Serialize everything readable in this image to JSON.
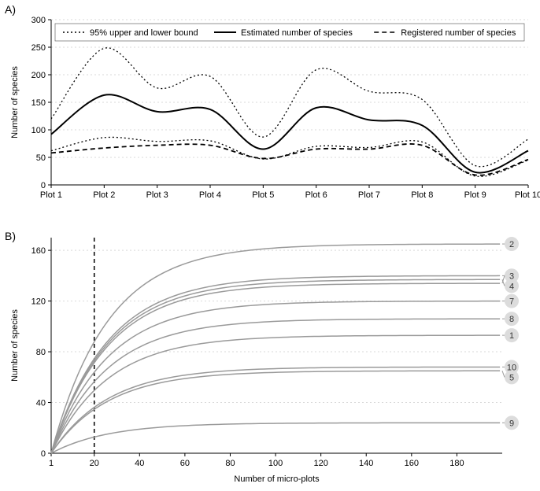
{
  "panelA": {
    "label": "A)",
    "ylabel": "Number of species",
    "ylim": [
      0,
      300
    ],
    "ytick_step": 50,
    "xticks": [
      "Plot 1",
      "Plot 2",
      "Plot 3",
      "Plot 4",
      "Plot 5",
      "Plot 6",
      "Plot 7",
      "Plot 8",
      "Plot 9",
      "Plot 10"
    ],
    "legend": [
      {
        "label": "95% upper and lower bound",
        "style": "dotted"
      },
      {
        "label": "Estimated number of species",
        "style": "solid"
      },
      {
        "label": "Registered number of species",
        "style": "dashed"
      }
    ],
    "series": {
      "upper": {
        "values": [
          120,
          248,
          176,
          197,
          87,
          209,
          170,
          155,
          35,
          83
        ],
        "color": "#000000",
        "dash": "dotted",
        "width": 1.3
      },
      "estimated": {
        "values": [
          92,
          163,
          133,
          137,
          65,
          140,
          118,
          108,
          23,
          62
        ],
        "color": "#000000",
        "dash": "solid",
        "width": 2
      },
      "lower": {
        "values": [
          62,
          86,
          79,
          80,
          47,
          70,
          68,
          78,
          16,
          45
        ],
        "color": "#000000",
        "dash": "dotted",
        "width": 1.3
      },
      "registered": {
        "values": [
          58,
          67,
          72,
          72,
          48,
          65,
          65,
          72,
          18,
          46
        ],
        "color": "#000000",
        "dash": "dashed",
        "width": 1.8
      }
    },
    "grid_color": "#d9d9d9",
    "axis_color": "#000000",
    "font_size": 11,
    "background": "#ffffff"
  },
  "panelB": {
    "label": "B)",
    "ylabel": "Number of species",
    "xlabel": "Number of micro-plots",
    "ylim": [
      0,
      170
    ],
    "ytick_step": 40,
    "xlim": [
      1,
      200
    ],
    "xtick_step": 20,
    "vline_x": 20,
    "curves": [
      {
        "id": "1",
        "asym": 93,
        "color": "#9a9a9a"
      },
      {
        "id": "2",
        "asym": 165,
        "color": "#9a9a9a"
      },
      {
        "id": "3",
        "asym": 134,
        "color": "#9a9a9a"
      },
      {
        "id": "4",
        "asym": 137,
        "color": "#9a9a9a"
      },
      {
        "id": "5",
        "asym": 65,
        "color": "#9a9a9a"
      },
      {
        "id": "6",
        "asym": 140,
        "color": "#9a9a9a"
      },
      {
        "id": "7",
        "asym": 120,
        "color": "#9a9a9a"
      },
      {
        "id": "8",
        "asym": 106,
        "color": "#9a9a9a"
      },
      {
        "id": "9",
        "asym": 24,
        "color": "#9a9a9a"
      },
      {
        "id": "10",
        "asym": 68,
        "color": "#9a9a9a"
      }
    ],
    "label_positions": [
      {
        "id": "2",
        "y": 165
      },
      {
        "id": "6",
        "y": 140
      },
      {
        "id": "4",
        "y": 137
      },
      {
        "id": "3",
        "y": 134
      },
      {
        "id": "7",
        "y": 120
      },
      {
        "id": "8",
        "y": 106
      },
      {
        "id": "1",
        "y": 93
      },
      {
        "id": "10",
        "y": 68
      },
      {
        "id": "5",
        "y": 65
      },
      {
        "id": "9",
        "y": 24
      }
    ],
    "curve_color": "#9a9a9a",
    "curve_width": 1.5,
    "grid_color": "#d9d9d9",
    "axis_color": "#000000",
    "font_size": 11,
    "badge_fill": "#dcdcdc",
    "badge_text": "#333333",
    "background": "#ffffff"
  }
}
